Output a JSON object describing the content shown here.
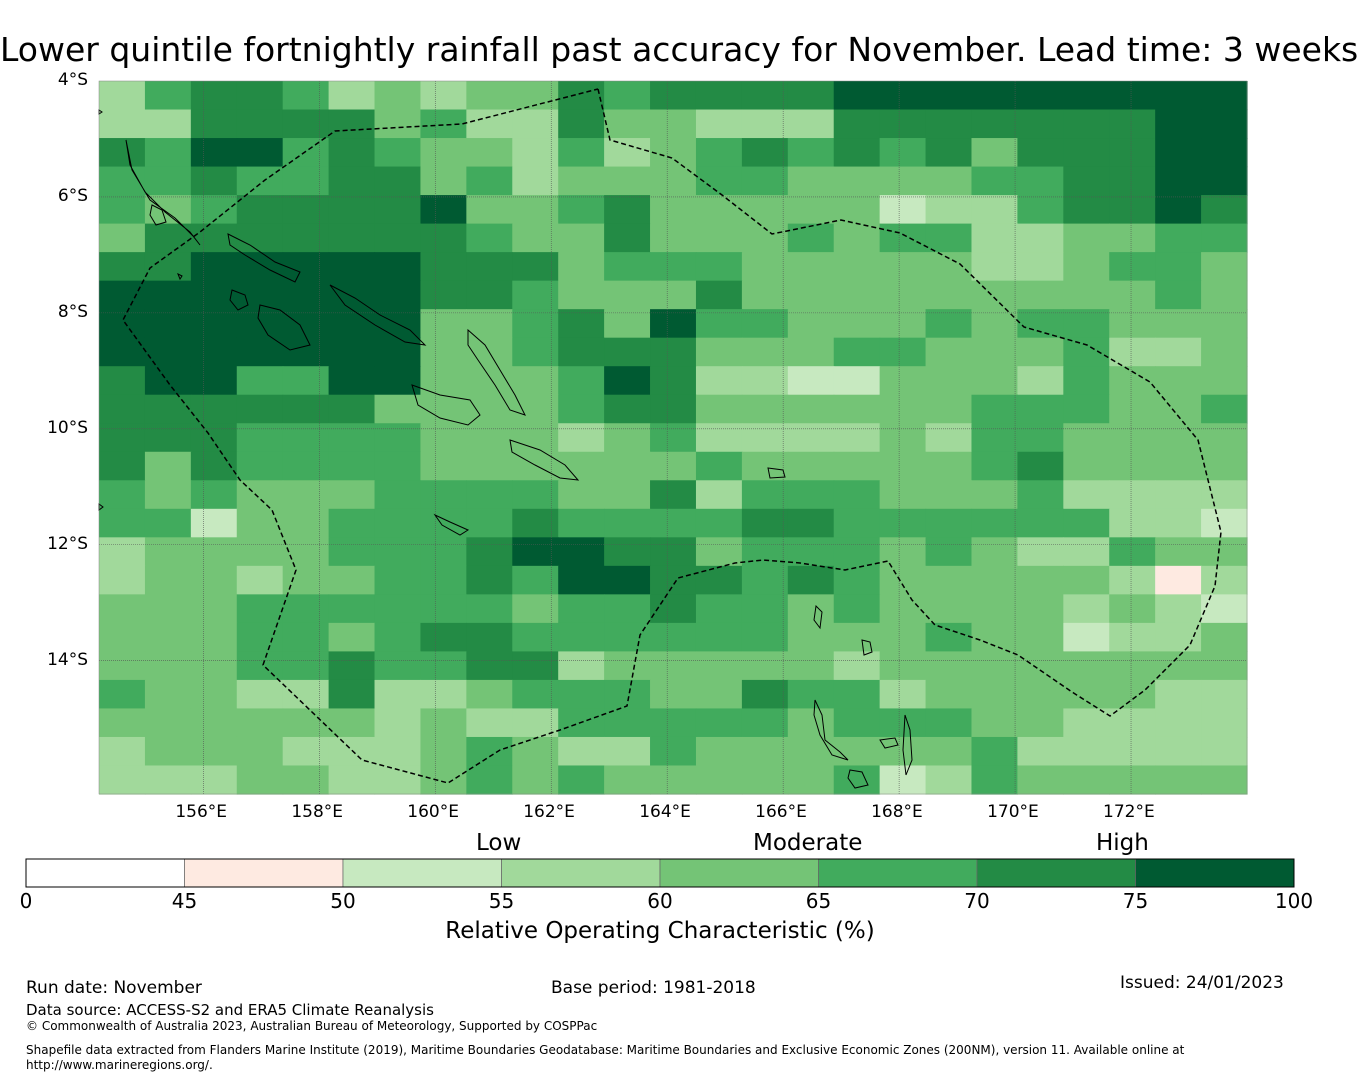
{
  "title": "Lower quintile fortnightly rainfall past accuracy for November. Lead time: 3 weeks",
  "map": {
    "lat_labels": [
      "4°S",
      "6°S",
      "8°S",
      "10°S",
      "12°S",
      "14°S"
    ],
    "lon_labels": [
      "156°E",
      "158°E",
      "160°E",
      "162°E",
      "164°E",
      "166°E",
      "168°E",
      "170°E",
      "172°E"
    ],
    "lon_range": [
      154.2,
      174.0
    ],
    "lat_range": [
      -4.0,
      -16.3
    ],
    "colorclass_rows": [
      "3566534344656666777777777",
      "3366664533644333666666677",
      "6577565443534565656466677",
      "5565566453444554444556677",
      "5456666744564444423356676",
      "4666666654464445455334455",
      "6677777666455544444334554",
      "7777777665444644444444454",
      "7777777445647554445455444",
      "7777777445666444554445334",
      "6775577444576332244435444",
      "6666664444566444444555445",
      "6665555444345333343554444",
      "6465555444444544444564444",
      "5454445555446355544453333",
      "5524455556555566555555332",
      "3444455567766455545433544",
      "3443445565776656544444313",
      "4445555554556554544443432",
      "4445545665555554445442334",
      "4445565566344444344444444",
      "5443363345554465534444433",
      "4444443433555554555443333",
      "3444333454335444444533333",
      "3334433454544444523544444"
    ]
  },
  "colorbar": {
    "ticks": [
      "0",
      "45",
      "50",
      "55",
      "60",
      "65",
      "70",
      "75",
      "100"
    ],
    "colors": [
      "#ffffff",
      "#feeae1",
      "#c7e9c0",
      "#a1d99b",
      "#74c476",
      "#41ab5d",
      "#238b45",
      "#005a32"
    ],
    "category_labels": [
      "Low",
      "Moderate",
      "High"
    ],
    "title": "Relative Operating Characteristic (%)"
  },
  "footer": {
    "run_date": "Run date: November",
    "base_period": "Base period: 1981-2018",
    "issued": "Issued: 24/01/2023",
    "data_source": "Data source: ACCESS-S2 and ERA5 Climate Reanalysis",
    "copyright": "© Commonwealth of Australia 2023, Australian Bureau of Meteorology, Supported by COSPPac",
    "shapefile_line1": "Shapefile data extracted from Flanders Marine Institute (2019), Maritime Boundaries Geodatabase: Maritime Boundaries and Exclusive Economic Zones (200NM), version 11. Available online at",
    "shapefile_line2": "http://www.marineregions.org/."
  }
}
